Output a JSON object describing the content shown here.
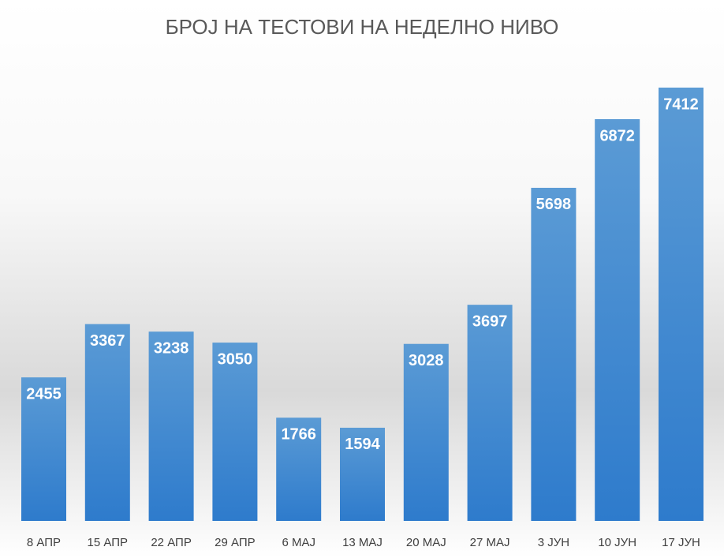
{
  "chart_data": {
    "type": "bar",
    "title": "БРОЈ НА ТЕСТОВИ НА НЕДЕЛНО НИВО",
    "categories": [
      "8 АПР",
      "15 АПР",
      "22 АПР",
      "29 АПР",
      "6 МАЈ",
      "13 МАЈ",
      "20 МАЈ",
      "27 МАЈ",
      "3 ЈУН",
      "10 ЈУН",
      "17 ЈУН"
    ],
    "values": [
      2455,
      3367,
      3238,
      3050,
      1766,
      1594,
      3028,
      3697,
      5698,
      6872,
      7412
    ],
    "color": "#5b9bd5"
  }
}
